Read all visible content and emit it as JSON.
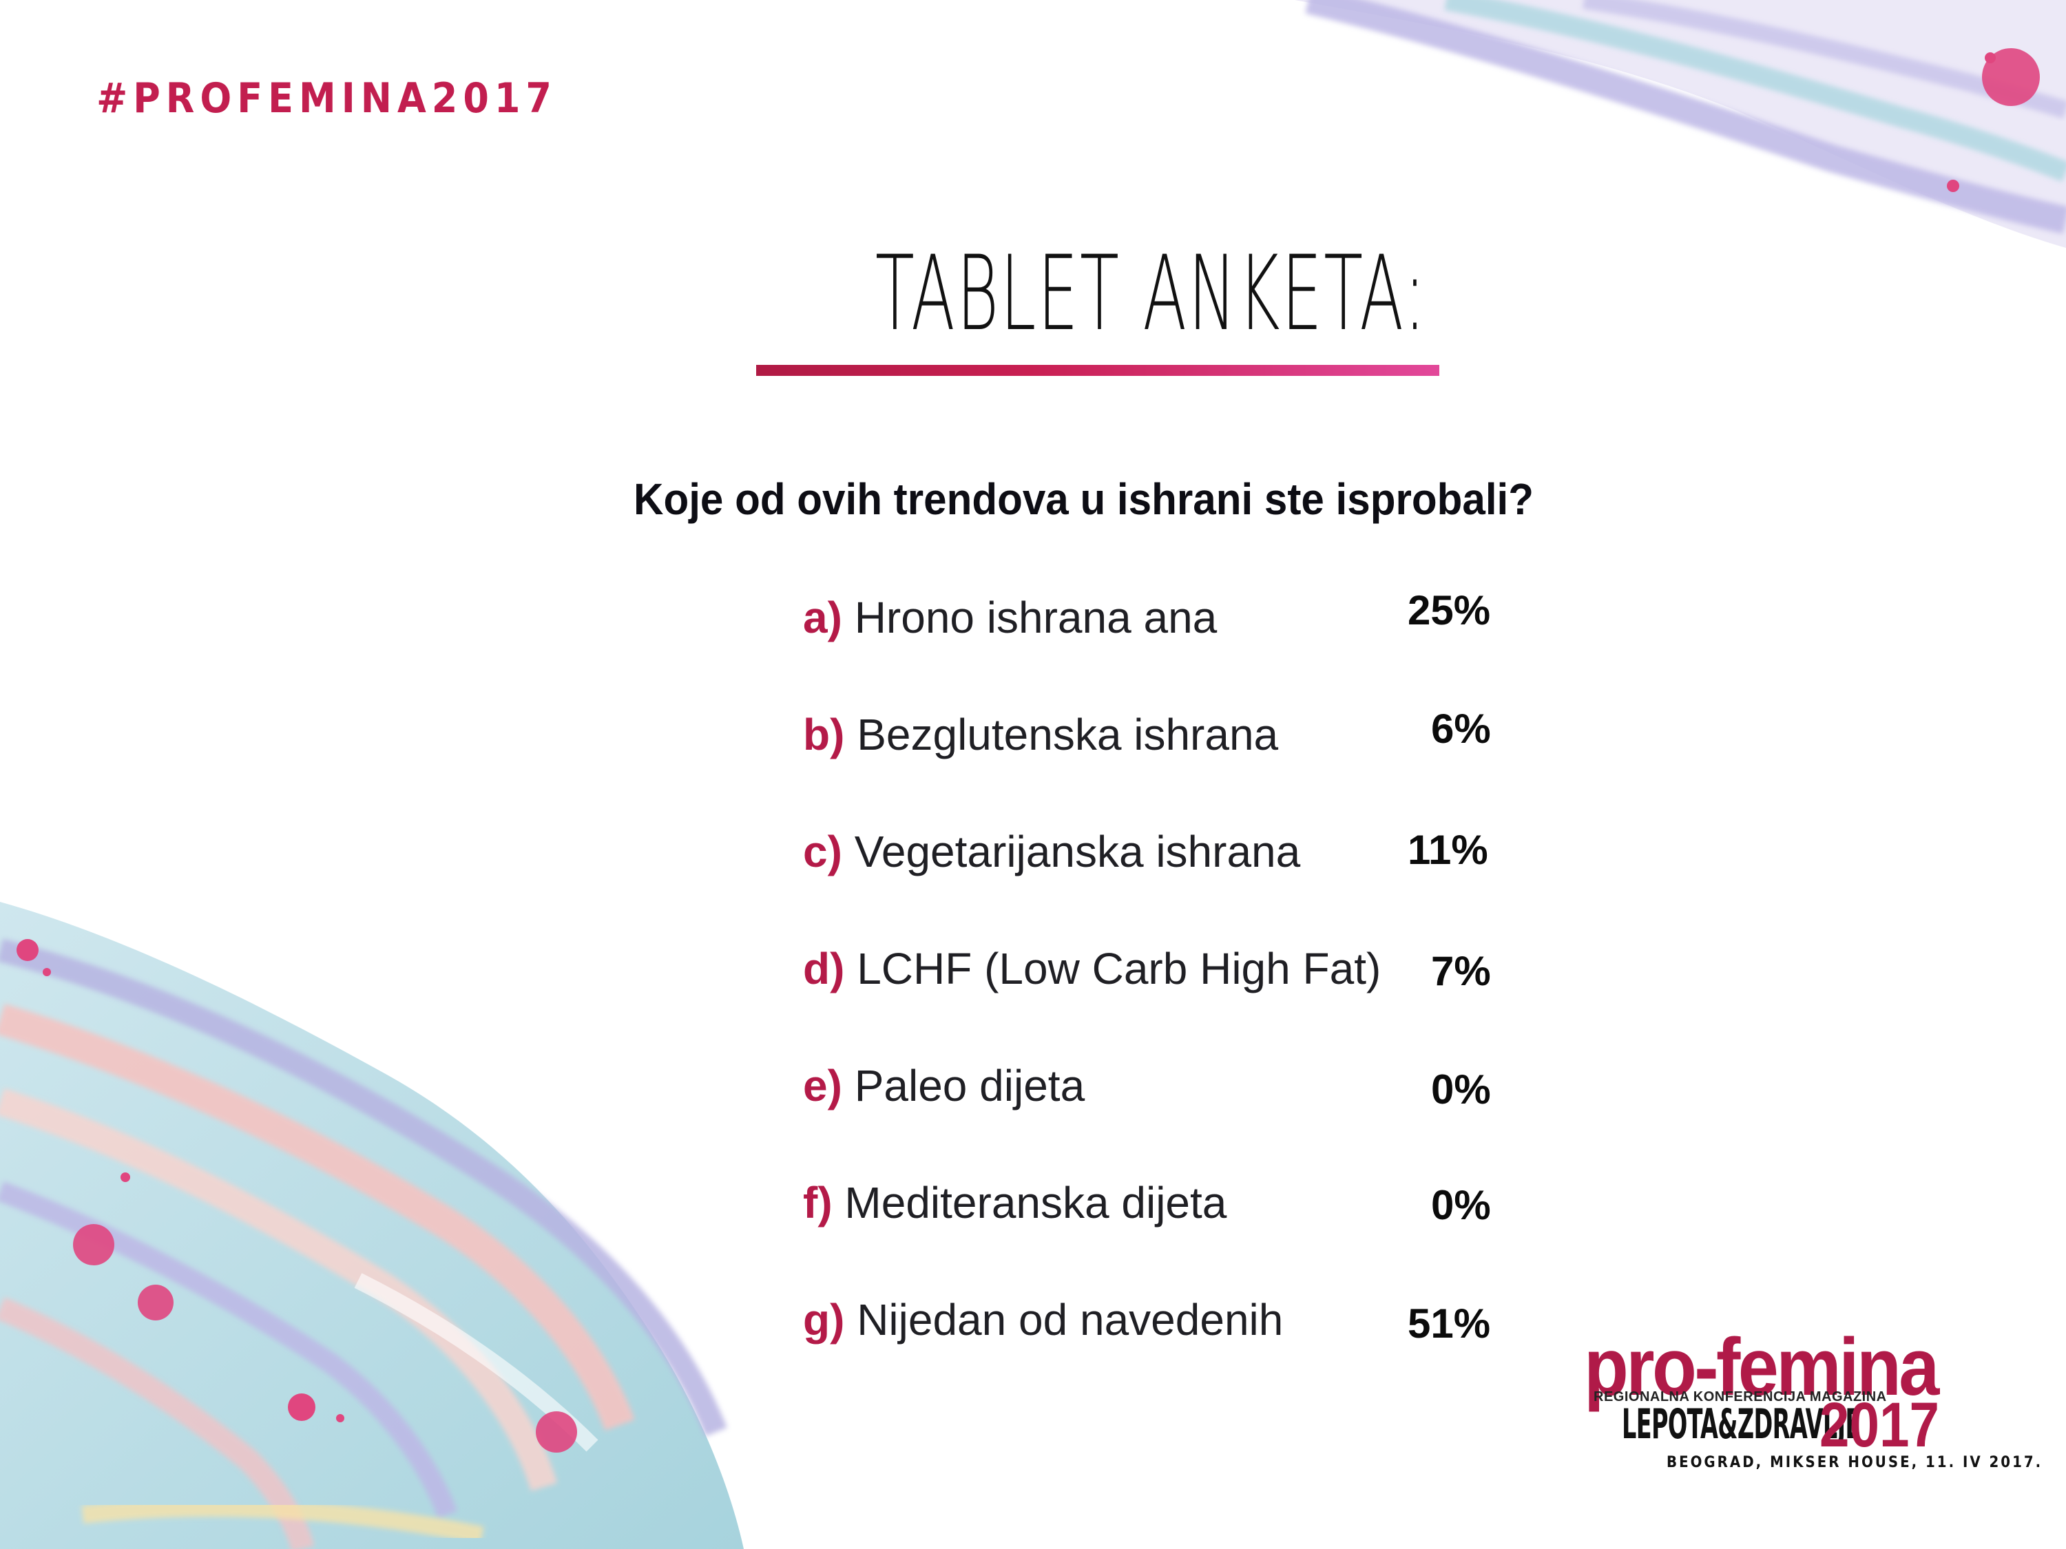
{
  "hashtag": "#PROFEMINA2017",
  "title": "TABLET ANKETA:",
  "question": "Koje od ovih trendova u ishrani ste isprobali?",
  "options": [
    {
      "letter": "a)",
      "label": "Hrono ishrana ana",
      "percent": "25%"
    },
    {
      "letter": "b)",
      "label": "Bezglutenska ishrana",
      "percent": "6%"
    },
    {
      "letter": "c)",
      "label": "Vegetarijanska ishrana",
      "percent": "11%"
    },
    {
      "letter": "d)",
      "label": "LCHF (Low Carb High Fat)",
      "percent": "7%"
    },
    {
      "letter": "e)",
      "label": "Paleo dijeta",
      "percent": "0%"
    },
    {
      "letter": "f)",
      "label": "Mediteranska dijeta",
      "percent": "0%"
    },
    {
      "letter": "g)",
      "label": "Nijedan od navedenih",
      "percent": "51%"
    }
  ],
  "logo": {
    "brand": "pro-femina",
    "subtitle": "REGIONALNA KONFERENCIJA MAGAZINA",
    "magazine": "LEPOTA&ZDRAVLJE",
    "year": "2017",
    "place": "BEOGRAD, MIKSER HOUSE, 11. IV 2017."
  },
  "colors": {
    "accent": "#b41a48",
    "accent_pink": "#e2489a",
    "text": "#111111",
    "wash_blue": "#a9d6df",
    "wash_lilac": "#b7b4e2",
    "wash_peach": "#f6c3c0"
  }
}
